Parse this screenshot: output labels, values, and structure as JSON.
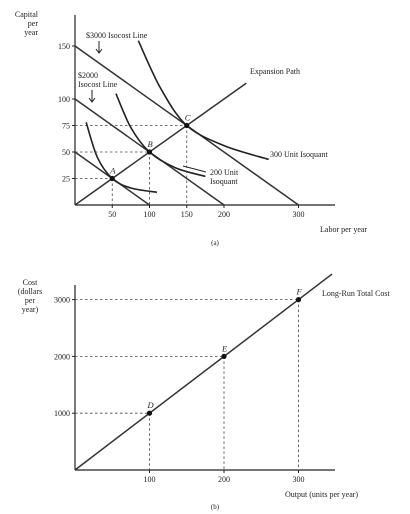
{
  "chart_data": [
    {
      "type": "line",
      "caption": "(a)",
      "ylabel": "Capital per year",
      "xlabel": "Labor per year",
      "xlim": [
        0,
        350
      ],
      "ylim": [
        0,
        175
      ],
      "x_ticks": [
        50,
        100,
        150,
        200,
        300
      ],
      "y_ticks": [
        25,
        50,
        75,
        100,
        150
      ],
      "isocost_lines": [
        {
          "name": "$3000 Isocost Line",
          "points": [
            [
              0,
              150
            ],
            [
              300,
              0
            ]
          ]
        },
        {
          "name": "$2000 Isocost Line",
          "points": [
            [
              0,
              100
            ],
            [
              200,
              0
            ]
          ]
        },
        {
          "name": "",
          "points": [
            [
              0,
              50
            ],
            [
              100,
              0
            ]
          ]
        }
      ],
      "expansion_path": {
        "name": "Expansion Path",
        "points": [
          [
            0,
            0
          ],
          [
            230,
            115
          ]
        ]
      },
      "isoquants": [
        {
          "name": "",
          "points": [
            [
              15,
              78
            ],
            [
              30,
              45
            ],
            [
              50,
              25
            ],
            [
              75,
              16
            ],
            [
              110,
              12
            ]
          ]
        },
        {
          "name": "200 Unit Isoquant",
          "points": [
            [
              55,
              105
            ],
            [
              75,
              73
            ],
            [
              100,
              50
            ],
            [
              135,
              35
            ],
            [
              175,
              27
            ]
          ]
        },
        {
          "name": "300 Unit Isoquant",
          "points": [
            [
              85,
              155
            ],
            [
              115,
              110
            ],
            [
              150,
              75
            ],
            [
              200,
              56
            ],
            [
              260,
              43
            ]
          ]
        }
      ],
      "points": [
        {
          "label": "A",
          "x": 50,
          "y": 25
        },
        {
          "label": "B",
          "x": 100,
          "y": 50
        },
        {
          "label": "C",
          "x": 150,
          "y": 75
        }
      ]
    },
    {
      "type": "line",
      "caption": "(b)",
      "ylabel": "Cost (dollars per year)",
      "xlabel": "Output (units per year)",
      "xlim": [
        0,
        350
      ],
      "ylim": [
        0,
        3500
      ],
      "x_ticks": [
        100,
        200,
        300
      ],
      "y_ticks": [
        1000,
        2000,
        3000
      ],
      "series": [
        {
          "name": "Long-Run Total Cost",
          "x": [
            0,
            345
          ],
          "y": [
            0,
            3450
          ]
        }
      ],
      "points": [
        {
          "label": "D",
          "x": 100,
          "y": 1000
        },
        {
          "label": "E",
          "x": 200,
          "y": 2000
        },
        {
          "label": "F",
          "x": 300,
          "y": 3000
        }
      ]
    }
  ]
}
